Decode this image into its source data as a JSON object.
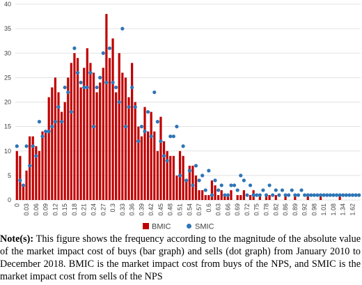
{
  "chart_data": {
    "type": "bar",
    "categories": [
      "0",
      null,
      null,
      "0.03",
      null,
      null,
      "0.06",
      null,
      null,
      "0.09",
      null,
      null,
      "0.12",
      null,
      null,
      "0.15",
      null,
      null,
      "0.18",
      null,
      null,
      "0.21",
      null,
      null,
      "0.24",
      null,
      null,
      "0.27",
      null,
      null,
      "0.3",
      null,
      null,
      "0.33",
      null,
      null,
      "0.36",
      null,
      null,
      "0.39",
      null,
      null,
      "0.42",
      null,
      null,
      "0.45",
      null,
      null,
      "0.48",
      null,
      null,
      "0.51",
      null,
      null,
      "0.54",
      null,
      null,
      "0.57",
      null,
      null,
      "0.6",
      null,
      null,
      "0.63",
      null,
      null,
      "0.66",
      null,
      null,
      "0.69",
      null,
      null,
      "0.72",
      null,
      null,
      "0.75",
      null,
      null,
      "0.78",
      null,
      null,
      "0.82",
      null,
      null,
      "0.86",
      null,
      null,
      "0.89",
      null,
      null,
      "0.92",
      null,
      null,
      "0.98",
      null,
      null,
      "1.01",
      null,
      null,
      "1.08",
      null,
      null,
      "1.34",
      null,
      null,
      "1.62",
      null,
      null
    ],
    "series": [
      {
        "name": "BMIC",
        "type": "bar",
        "color": "#c00000",
        "values": [
          10,
          9,
          3,
          6,
          13,
          13,
          11,
          10,
          14,
          14,
          21,
          23,
          25,
          22,
          18,
          20,
          25,
          28,
          30,
          29,
          23,
          27,
          31,
          28,
          26,
          22,
          24,
          27,
          38,
          29,
          33,
          22,
          30,
          26,
          25,
          21,
          28,
          20,
          15,
          13,
          19,
          14,
          18,
          14,
          10,
          17,
          12,
          10,
          9,
          9,
          5,
          10,
          9,
          4,
          7,
          7,
          5,
          2,
          2,
          1,
          1,
          4,
          3,
          1,
          2,
          1,
          1,
          2,
          0,
          1,
          1,
          2,
          0,
          1,
          2,
          0,
          1,
          0,
          1,
          1,
          0,
          1,
          0,
          0,
          1,
          0,
          0,
          1,
          0,
          0,
          0,
          1,
          0,
          0,
          0,
          1,
          0,
          0,
          0,
          0,
          0,
          1,
          0,
          0,
          0,
          0,
          0,
          0
        ]
      },
      {
        "name": "SMIC",
        "type": "scatter",
        "color": "#2e75b6",
        "values": [
          11,
          4,
          3,
          11,
          7,
          11,
          9,
          16,
          13,
          14,
          14,
          15,
          16,
          19,
          16,
          23,
          22,
          18,
          31,
          26,
          24,
          23,
          23,
          26,
          15,
          23,
          25,
          30,
          24,
          31,
          24,
          23,
          20,
          35,
          15,
          19,
          23,
          19,
          12,
          15,
          14,
          18,
          13,
          22,
          16,
          12,
          9,
          8,
          13,
          13,
          15,
          5,
          11,
          4,
          6,
          3,
          7,
          4,
          5,
          2,
          6,
          1,
          4,
          2,
          3,
          1,
          1,
          3,
          3,
          2,
          5,
          4,
          1,
          3,
          1,
          1,
          1,
          2,
          1,
          3,
          1,
          2,
          1,
          2,
          1,
          1,
          2,
          1,
          1,
          2,
          1,
          1,
          1,
          1,
          1,
          1,
          1,
          1,
          1,
          1,
          1,
          1,
          1,
          1,
          1,
          1,
          1,
          1
        ]
      }
    ],
    "ylim": [
      0,
      40
    ],
    "yticks": [
      0,
      5,
      10,
      15,
      20,
      25,
      30,
      35,
      40
    ],
    "grid": true,
    "legend": "bottom"
  },
  "note": {
    "label": "Note(s):",
    "text": " This figure shows the frequency according to the magnitude of the absolute value of the market impact cost of buys (bar graph) and sells (dot graph) from January 2010 to December 2018. BMIC is the market impact cost from buys of the NPS, and SMIC is the market impact cost from sells of the NPS"
  }
}
